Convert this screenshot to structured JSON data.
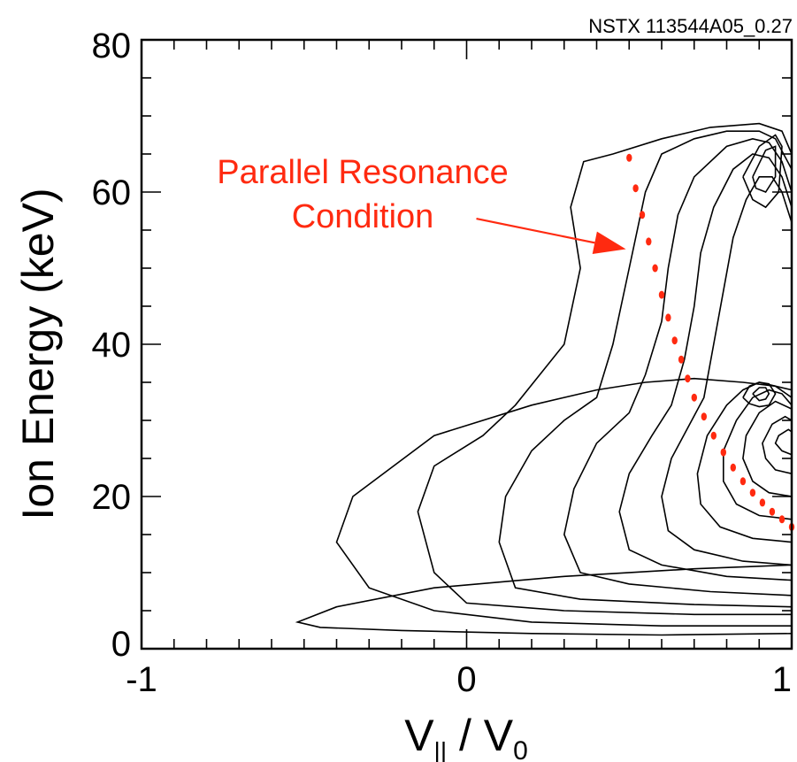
{
  "chart_data": {
    "type": "contour",
    "run_label": "NSTX 113544A05_0.27",
    "xlabel": {
      "main": "V",
      "sub1": "||",
      "mid": " / V",
      "sub2": "0"
    },
    "ylabel": "Ion Energy (keV)",
    "xlim": [
      -1,
      1
    ],
    "ylim": [
      0,
      80
    ],
    "x_ticks": [
      {
        "value": -1,
        "label": "-1"
      },
      {
        "value": 0,
        "label": "0"
      },
      {
        "value": 1,
        "label": "1"
      }
    ],
    "y_ticks": [
      {
        "value": 0,
        "label": "0"
      },
      {
        "value": 20,
        "label": "20"
      },
      {
        "value": 40,
        "label": "40"
      },
      {
        "value": 60,
        "label": "60"
      },
      {
        "value": 80,
        "label": "80"
      }
    ],
    "x_minor_step": 0.1,
    "y_minor_step": 5,
    "annotation": {
      "lines": [
        "Parallel Resonance",
        "Condition"
      ],
      "color": "#ff2a10",
      "arrow_from": [
        0.03,
        56.5
      ],
      "arrow_to": [
        0.49,
        52.5
      ]
    },
    "resonance_curve": {
      "color": "#ff2a10",
      "x": [
        0.5,
        0.52,
        0.54,
        0.56,
        0.58,
        0.6,
        0.62,
        0.64,
        0.66,
        0.68,
        0.7,
        0.73,
        0.76,
        0.79,
        0.82,
        0.85,
        0.88,
        0.91,
        0.94,
        0.97,
        1.0
      ],
      "y": [
        64.5,
        60.5,
        57.0,
        53.5,
        50.0,
        46.5,
        43.5,
        40.5,
        38.0,
        35.5,
        33.0,
        30.5,
        28.0,
        25.8,
        23.8,
        22.0,
        20.5,
        19.2,
        18.0,
        17.0,
        16.0
      ]
    },
    "contours": [
      {
        "x": [
          1.0,
          0.6,
          0.2,
          -0.2,
          -0.45,
          -0.52,
          -0.4,
          -0.1,
          0.3,
          0.7,
          1.0
        ],
        "y": [
          2.0,
          1.8,
          2.0,
          2.4,
          2.8,
          3.5,
          5.5,
          8.0,
          9.5,
          10.5,
          11.0
        ]
      },
      {
        "x": [
          1.0,
          0.6,
          0.2,
          -0.1,
          -0.3,
          -0.4,
          -0.35,
          -0.1,
          0.2,
          0.4,
          0.55,
          0.7,
          0.85,
          0.95,
          1.0
        ],
        "y": [
          3.0,
          3.0,
          3.5,
          5.0,
          8.0,
          14.0,
          20.0,
          28.0,
          32.0,
          34.0,
          35.0,
          35.5,
          35.0,
          34.5,
          34.0
        ]
      },
      {
        "x": [
          1.0,
          0.7,
          0.3,
          0.0,
          -0.1,
          -0.15,
          -0.1,
          0.05,
          0.15,
          0.3,
          0.35,
          0.32,
          0.36,
          0.45,
          0.6,
          0.75,
          0.9,
          0.97,
          1.0
        ],
        "y": [
          4.5,
          4.5,
          5.0,
          6.0,
          10.0,
          18.0,
          24.0,
          28.0,
          32.0,
          40.0,
          50.0,
          58.0,
          64.0,
          65.0,
          67.0,
          68.5,
          69.0,
          68.0,
          65.0
        ]
      },
      {
        "x": [
          1.0,
          0.7,
          0.35,
          0.15,
          0.1,
          0.12,
          0.2,
          0.3,
          0.4,
          0.45,
          0.5,
          0.55,
          0.6,
          0.7,
          0.8,
          0.9,
          0.95,
          1.0
        ],
        "y": [
          5.5,
          5.8,
          6.5,
          8.0,
          14.0,
          20.0,
          26.0,
          30.0,
          33.0,
          40.0,
          50.0,
          60.0,
          65.0,
          67.0,
          68.0,
          68.0,
          67.0,
          63.0
        ]
      },
      {
        "x": [
          1.0,
          0.75,
          0.5,
          0.35,
          0.3,
          0.33,
          0.4,
          0.5,
          0.55,
          0.6,
          0.62,
          0.65,
          0.7,
          0.8,
          0.88,
          0.93,
          0.97,
          1.0
        ],
        "y": [
          7.0,
          7.5,
          8.5,
          10.0,
          15.0,
          21.0,
          27.0,
          31.0,
          36.0,
          43.0,
          50.0,
          57.0,
          62.0,
          66.0,
          67.0,
          66.5,
          64.0,
          60.0
        ]
      },
      {
        "x": [
          1.0,
          0.8,
          0.6,
          0.5,
          0.47,
          0.5,
          0.57,
          0.63,
          0.67,
          0.7,
          0.72,
          0.76,
          0.82,
          0.88,
          0.93,
          0.97,
          1.0
        ],
        "y": [
          9.0,
          9.5,
          11.0,
          13.0,
          18.0,
          23.0,
          28.0,
          32.0,
          38.0,
          45.0,
          52.0,
          58.0,
          63.0,
          65.0,
          64.5,
          62.0,
          58.0
        ]
      },
      {
        "x": [
          1.0,
          0.85,
          0.7,
          0.62,
          0.6,
          0.63,
          0.68,
          0.73,
          0.76,
          0.79,
          0.82,
          0.86,
          0.9,
          0.94,
          0.97,
          1.0
        ],
        "y": [
          11.0,
          11.5,
          13.0,
          15.5,
          20.0,
          25.0,
          29.0,
          33.0,
          40.0,
          47.0,
          54.0,
          59.0,
          62.0,
          62.0,
          60.0,
          56.0
        ]
      },
      {
        "x": [
          1.0,
          0.88,
          0.78,
          0.72,
          0.71,
          0.74,
          0.8,
          0.85,
          0.9,
          0.95,
          1.0
        ],
        "y": [
          14.0,
          14.5,
          16.0,
          19.0,
          23.0,
          28.0,
          32.0,
          34.0,
          35.0,
          34.5,
          33.0
        ]
      },
      {
        "x": [
          1.0,
          0.9,
          0.83,
          0.79,
          0.79,
          0.83,
          0.88,
          0.93,
          0.97,
          1.0
        ],
        "y": [
          17.0,
          17.5,
          19.0,
          22.0,
          26.0,
          30.0,
          33.0,
          34.0,
          33.5,
          32.0
        ]
      },
      {
        "x": [
          1.0,
          0.93,
          0.88,
          0.85,
          0.86,
          0.9,
          0.95,
          1.0
        ],
        "y": [
          20.0,
          20.5,
          22.0,
          25.0,
          28.0,
          31.0,
          32.5,
          31.5
        ]
      },
      {
        "x": [
          1.0,
          0.95,
          0.92,
          0.91,
          0.94,
          0.98,
          1.0
        ],
        "y": [
          23.0,
          23.5,
          25.0,
          27.0,
          29.5,
          30.5,
          30.0
        ]
      },
      {
        "x": [
          1.0,
          0.97,
          0.95,
          0.96,
          0.99,
          1.0
        ],
        "y": [
          25.5,
          26.0,
          27.0,
          28.0,
          28.8,
          28.5
        ]
      },
      {
        "x": [
          0.85,
          0.87,
          0.9,
          0.93,
          0.95,
          0.93,
          0.9,
          0.87,
          0.85
        ],
        "y": [
          33.0,
          34.5,
          35.0,
          34.8,
          33.5,
          32.0,
          31.8,
          32.2,
          33.0
        ]
      },
      {
        "x": [
          0.88,
          0.9,
          0.92,
          0.93,
          0.92,
          0.9,
          0.88
        ],
        "y": [
          33.5,
          34.3,
          34.3,
          33.5,
          32.8,
          32.6,
          33.5
        ]
      },
      {
        "x": [
          0.85,
          0.9,
          0.95,
          0.97,
          0.96,
          0.92,
          0.88,
          0.85
        ],
        "y": [
          62.0,
          66.0,
          67.5,
          66.0,
          60.0,
          58.0,
          59.0,
          62.0
        ]
      },
      {
        "x": [
          0.88,
          0.92,
          0.95,
          0.95,
          0.92,
          0.89,
          0.88
        ],
        "y": [
          62.0,
          65.5,
          66.0,
          62.0,
          60.0,
          60.5,
          62.0
        ]
      }
    ]
  }
}
